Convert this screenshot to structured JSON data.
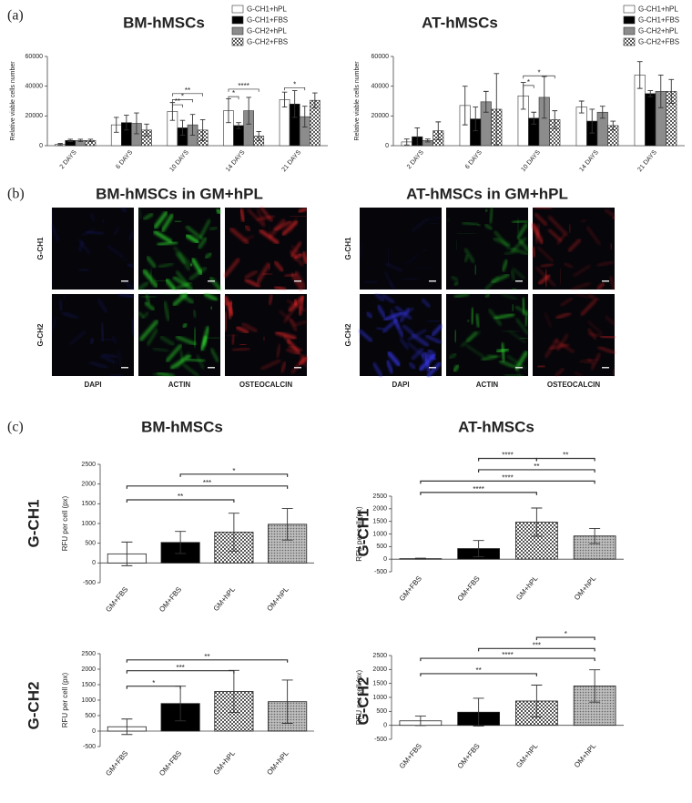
{
  "panel_labels": [
    "(a)",
    "(b)",
    "(c)"
  ],
  "chart_data": [
    {
      "type": "bar",
      "title": "BM-hMSCs",
      "ylabel": "Relative viable cells number",
      "categories": [
        "2 DAYS",
        "6 DAYS",
        "10 DAYS",
        "14 DAYS",
        "21 DAYS"
      ],
      "ylim": [
        0,
        60000
      ],
      "yticks": [
        0,
        20000,
        40000,
        60000
      ],
      "series": [
        {
          "name": "G-CH1+hPL",
          "color": "#ffffff",
          "values": [
            1000,
            14000,
            23000,
            23500,
            31000
          ],
          "errors": [
            500,
            5000,
            6000,
            8000,
            5000
          ]
        },
        {
          "name": "G-CH1+FBS",
          "color": "#000000",
          "values": [
            3500,
            15500,
            12000,
            13500,
            28000
          ],
          "errors": [
            800,
            5000,
            5000,
            2000,
            9000
          ]
        },
        {
          "name": "G-CH2+hPL",
          "color": "#8c8c8c",
          "values": [
            3500,
            15000,
            14000,
            23500,
            19500
          ],
          "errors": [
            800,
            7000,
            7000,
            9000,
            7000
          ]
        },
        {
          "name": "G-CH2+FBS",
          "color": "checker",
          "values": [
            3500,
            10500,
            10500,
            6500,
            30500
          ],
          "errors": [
            800,
            4000,
            7000,
            3000,
            5000
          ]
        }
      ],
      "annotations": [
        {
          "label": "**",
          "category": "10 DAYS",
          "between": [
            "G-CH1+hPL",
            "G-CH2+FBS"
          ],
          "y": 35000
        },
        {
          "label": "*",
          "category": "10 DAYS",
          "between": [
            "G-CH1+hPL",
            "G-CH2+hPL"
          ],
          "y": 31000
        },
        {
          "label": "**",
          "category": "10 DAYS",
          "between": [
            "G-CH1+hPL",
            "G-CH1+FBS"
          ],
          "y": 27500
        },
        {
          "label": "****",
          "category": "14 DAYS",
          "between": [
            "G-CH1+hPL",
            "G-CH2+FBS"
          ],
          "y": 38000
        },
        {
          "label": "*",
          "category": "14 DAYS",
          "between": [
            "G-CH1+hPL",
            "G-CH1+FBS"
          ],
          "y": 33000
        },
        {
          "label": "*",
          "category": "21 DAYS",
          "between": [
            "G-CH1+hPL",
            "G-CH2+hPL"
          ],
          "y": 39000
        }
      ]
    },
    {
      "type": "bar",
      "title": "AT-hMSCs",
      "ylabel": "Relative viable cells number",
      "categories": [
        "2 DAYS",
        "6 DAYS",
        "10 DAYS",
        "14 DAYS",
        "21 DAYS"
      ],
      "ylim": [
        0,
        60000
      ],
      "yticks": [
        0,
        20000,
        40000,
        60000
      ],
      "series": [
        {
          "name": "G-CH1+hPL",
          "color": "#ffffff",
          "values": [
            2500,
            27000,
            33500,
            26000,
            47500
          ],
          "errors": [
            2000,
            13000,
            9000,
            4000,
            9000
          ]
        },
        {
          "name": "G-CH1+FBS",
          "color": "#000000",
          "values": [
            6000,
            18000,
            18500,
            16500,
            35000
          ],
          "errors": [
            6000,
            8000,
            4000,
            8000,
            2000
          ]
        },
        {
          "name": "G-CH2+hPL",
          "color": "#8c8c8c",
          "values": [
            3500,
            29500,
            32500,
            22500,
            36500
          ],
          "errors": [
            1000,
            7000,
            14000,
            4000,
            11000
          ]
        },
        {
          "name": "G-CH2+FBS",
          "color": "checker",
          "values": [
            10000,
            24500,
            17500,
            13500,
            36500
          ],
          "errors": [
            6000,
            24000,
            6000,
            3000,
            8000
          ]
        }
      ],
      "annotations": [
        {
          "label": "*",
          "category": "10 DAYS",
          "between": [
            "G-CH1+hPL",
            "G-CH2+FBS"
          ],
          "y": 47000
        },
        {
          "label": "*",
          "category": "10 DAYS",
          "between": [
            "G-CH1+hPL",
            "G-CH1+FBS"
          ],
          "y": 40500
        }
      ]
    },
    {
      "type": "bar",
      "title": "BM-hMSCs",
      "row_label": "G-CH1",
      "ylabel": "RFU per cell (px)",
      "categories": [
        "GM+FBS",
        "OM+FBS",
        "GM+hPL",
        "OM+hPL"
      ],
      "colors": [
        "#ffffff",
        "#000000",
        "checker",
        "dots"
      ],
      "values": [
        230,
        520,
        780,
        980
      ],
      "errors": [
        300,
        280,
        480,
        400
      ],
      "ylim": [
        -500,
        2500
      ],
      "yticks": [
        -500,
        0,
        500,
        1000,
        1500,
        2000,
        2500
      ],
      "annotations": [
        {
          "label": "*",
          "between": [
            "OM+FBS",
            "OM+hPL"
          ],
          "y": 2250
        },
        {
          "label": "***",
          "between": [
            "GM+FBS",
            "OM+hPL"
          ],
          "y": 1950
        },
        {
          "label": "**",
          "between": [
            "GM+FBS",
            "GM+hPL"
          ],
          "y": 1600
        }
      ]
    },
    {
      "type": "bar",
      "title": "AT-hMSCs",
      "row_label": "G-CH1",
      "ylabel": "RFU per cell (px)",
      "categories": [
        "GM+FBS",
        "OM+FBS",
        "GM+hPL",
        "OM+hPL"
      ],
      "colors": [
        "#ffffff",
        "#000000",
        "checker",
        "dots"
      ],
      "values": [
        20,
        420,
        1470,
        920
      ],
      "errors": [
        20,
        320,
        560,
        300
      ],
      "ylim": [
        -500,
        2500
      ],
      "yticks": [
        -500,
        0,
        500,
        1000,
        1500,
        2000,
        2500
      ],
      "annotations": [
        {
          "label": "****",
          "between": [
            "OM+FBS",
            "GM+hPL"
          ],
          "y": 4000
        },
        {
          "label": "**",
          "between": [
            "GM+hPL",
            "OM+hPL"
          ],
          "y": 4000
        },
        {
          "label": "**",
          "between": [
            "OM+FBS",
            "OM+hPL"
          ],
          "y": 3550
        },
        {
          "label": "****",
          "between": [
            "GM+FBS",
            "OM+hPL"
          ],
          "y": 3100
        },
        {
          "label": "****",
          "between": [
            "GM+FBS",
            "GM+hPL"
          ],
          "y": 2650
        }
      ]
    },
    {
      "type": "bar",
      "row_label": "G-CH2",
      "ylabel": "RFU per cell (px)",
      "categories": [
        "GM+FBS",
        "OM+FBS",
        "GM+hPL",
        "OM+hPL"
      ],
      "colors": [
        "#ffffff",
        "#000000",
        "checker",
        "dots"
      ],
      "values": [
        140,
        890,
        1280,
        950
      ],
      "errors": [
        250,
        560,
        680,
        700
      ],
      "ylim": [
        -500,
        2500
      ],
      "yticks": [
        -500,
        0,
        500,
        1000,
        1500,
        2000,
        2500
      ],
      "annotations": [
        {
          "label": "**",
          "between": [
            "GM+FBS",
            "OM+hPL"
          ],
          "y": 2300
        },
        {
          "label": "***",
          "between": [
            "GM+FBS",
            "GM+hPL"
          ],
          "y": 1950
        },
        {
          "label": "*",
          "between": [
            "GM+FBS",
            "OM+FBS"
          ],
          "y": 1450
        }
      ]
    },
    {
      "type": "bar",
      "row_label": "G-CH2",
      "ylabel": "RFU per cell (px)",
      "categories": [
        "GM+FBS",
        "OM+FBS",
        "GM+hPL",
        "OM+hPL"
      ],
      "colors": [
        "#ffffff",
        "#000000",
        "checker",
        "dots"
      ],
      "values": [
        160,
        470,
        870,
        1410
      ],
      "errors": [
        170,
        500,
        570,
        580
      ],
      "ylim": [
        -500,
        2500
      ],
      "yticks": [
        -500,
        0,
        500,
        1000,
        1500,
        2000,
        2500
      ],
      "annotations": [
        {
          "label": "*",
          "between": [
            "GM+hPL",
            "OM+hPL"
          ],
          "y": 3150
        },
        {
          "label": "***",
          "between": [
            "OM+FBS",
            "OM+hPL"
          ],
          "y": 2750
        },
        {
          "label": "****",
          "between": [
            "GM+FBS",
            "OM+hPL"
          ],
          "y": 2400
        },
        {
          "label": "**",
          "between": [
            "GM+FBS",
            "GM+hPL"
          ],
          "y": 1850
        }
      ]
    }
  ],
  "panel_b": {
    "groups": [
      {
        "title": "BM-hMSCs in GM+hPL",
        "rows": [
          "G-CH1",
          "G-CH2"
        ],
        "columns": [
          "DAPI",
          "ACTIN",
          "OSTEOCALCIN"
        ]
      },
      {
        "title": "AT-hMSCs in GM+hPL",
        "rows": [
          "G-CH1",
          "G-CH2"
        ],
        "columns": [
          "DAPI",
          "ACTIN",
          "OSTEOCALCIN"
        ]
      }
    ],
    "column_colors": [
      "#000000",
      "#000000",
      "#cc0000"
    ],
    "channel_colors": [
      "#3a3aff",
      "#2ee02e",
      "#ff2a2a"
    ]
  }
}
